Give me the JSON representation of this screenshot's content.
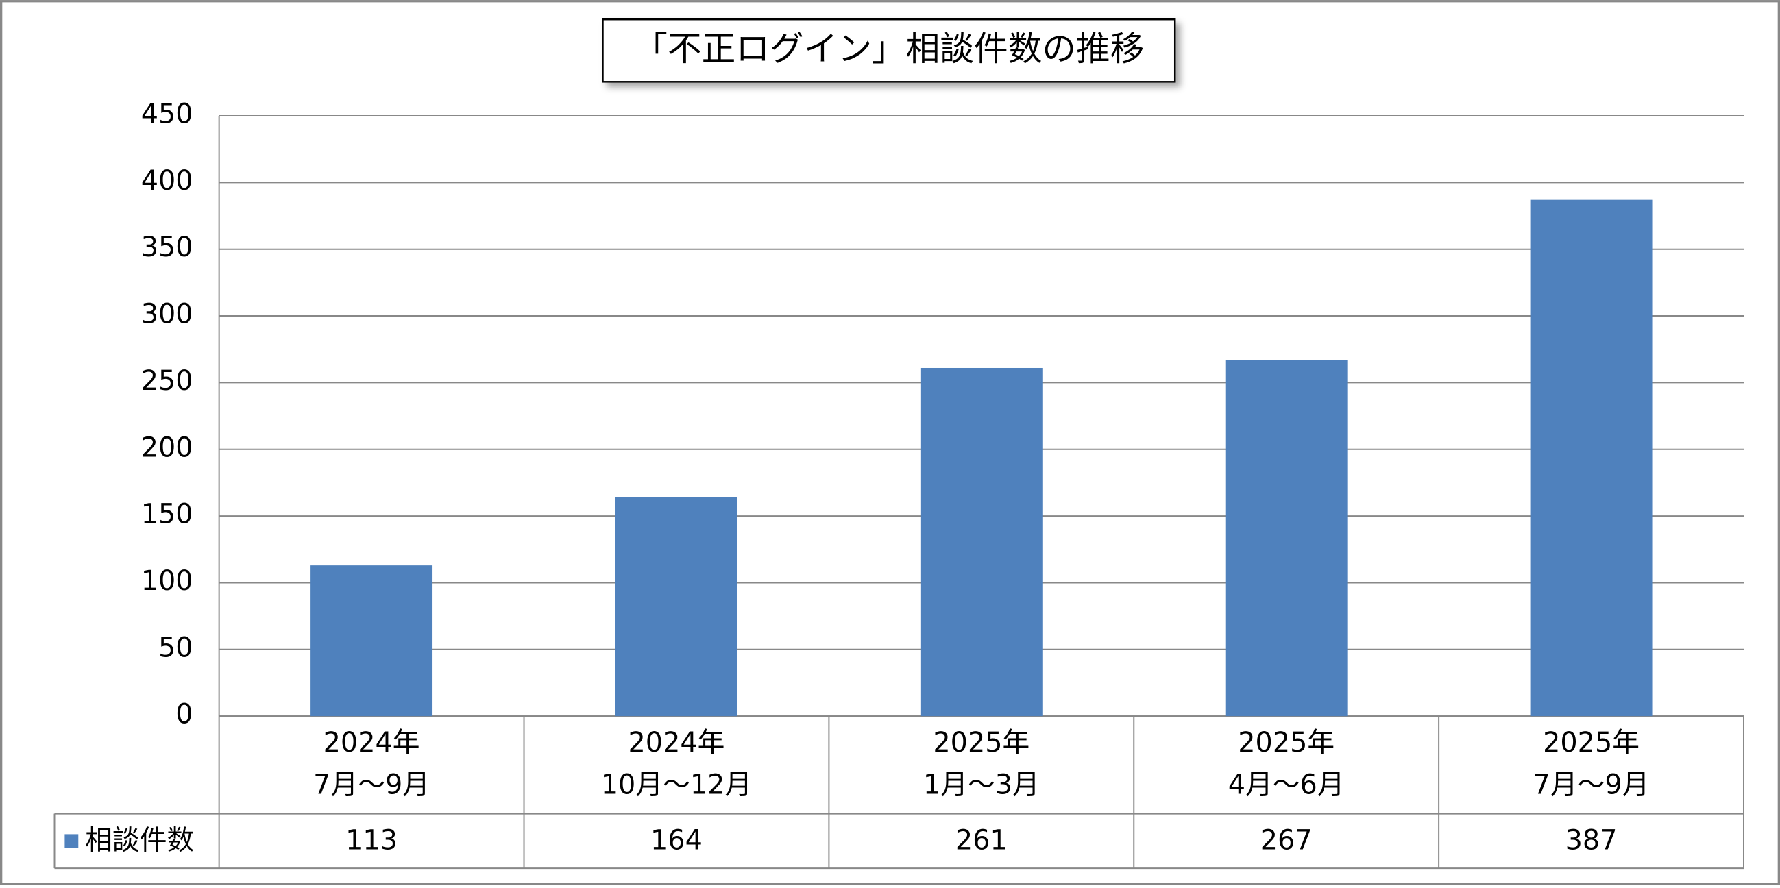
{
  "chart_data": {
    "type": "bar",
    "title": "「不正ログイン」相談件数の推移",
    "categories": [
      [
        "2024年",
        "7月～9月"
      ],
      [
        "2024年",
        "10月～12月"
      ],
      [
        "2025年",
        "1月～3月"
      ],
      [
        "2025年",
        "4月～6月"
      ],
      [
        "2025年",
        "7月～9月"
      ]
    ],
    "series": [
      {
        "name": "相談件数",
        "color": "#4f81bd",
        "values": [
          113,
          164,
          261,
          267,
          387
        ]
      }
    ],
    "ylim": [
      0,
      450
    ],
    "yticks": [
      0,
      50,
      100,
      150,
      200,
      250,
      300,
      350,
      400,
      450
    ],
    "grid": true
  }
}
